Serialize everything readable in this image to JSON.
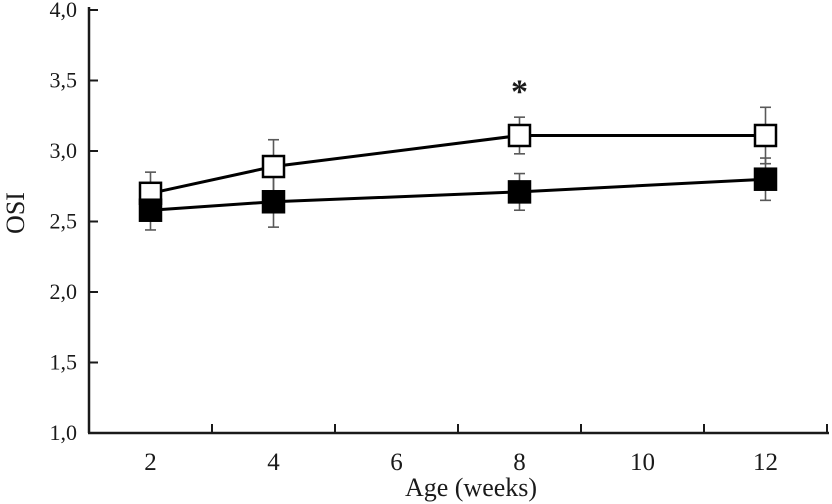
{
  "chart_data": {
    "type": "line",
    "title": "",
    "xlabel": "Age (weeks)",
    "ylabel": "OSI",
    "xlim": [
      1,
      13
    ],
    "ylim": [
      1.0,
      4.0
    ],
    "grid": false,
    "legend": "none",
    "decimal_separator": ",",
    "x_tick_labels": [
      {
        "label": "2",
        "value": 2
      },
      {
        "label": "4",
        "value": 4
      },
      {
        "label": "6",
        "value": 6
      },
      {
        "label": "8",
        "value": 8
      },
      {
        "label": "10",
        "value": 10
      },
      {
        "label": "12",
        "value": 12
      }
    ],
    "x_tick_marks": [
      3,
      5,
      7,
      9,
      11,
      13
    ],
    "y_ticks": [
      {
        "label": "4,0",
        "value": 4.0
      },
      {
        "label": "3,5",
        "value": 3.5
      },
      {
        "label": "3,0",
        "value": 3.0
      },
      {
        "label": "2,5",
        "value": 2.5
      },
      {
        "label": "2,0",
        "value": 2.0
      },
      {
        "label": "1,5",
        "value": 1.5
      },
      {
        "label": "1,0",
        "value": 1.0
      }
    ],
    "series": [
      {
        "name": "open-squares",
        "marker": "open-square",
        "x": [
          2,
          4,
          8,
          12
        ],
        "y": [
          2.7,
          2.89,
          3.11,
          3.11
        ],
        "yerr": [
          0.15,
          0.19,
          0.13,
          0.2
        ]
      },
      {
        "name": "filled-squares",
        "marker": "filled-square",
        "x": [
          2,
          4,
          8,
          12
        ],
        "y": [
          2.58,
          2.64,
          2.71,
          2.8
        ],
        "yerr": [
          0.14,
          0.18,
          0.13,
          0.15
        ]
      }
    ],
    "annotations": [
      {
        "text": "*",
        "x": 8,
        "y": 3.45
      }
    ],
    "colors": {
      "line": "#000000",
      "marker_stroke": "#000000",
      "marker_open_fill": "#ffffff",
      "marker_filled_fill": "#000000",
      "error_bar": "#595959",
      "axis": "#1a1a1a",
      "background": "#ffffff",
      "text": "#1a1a1a"
    }
  }
}
